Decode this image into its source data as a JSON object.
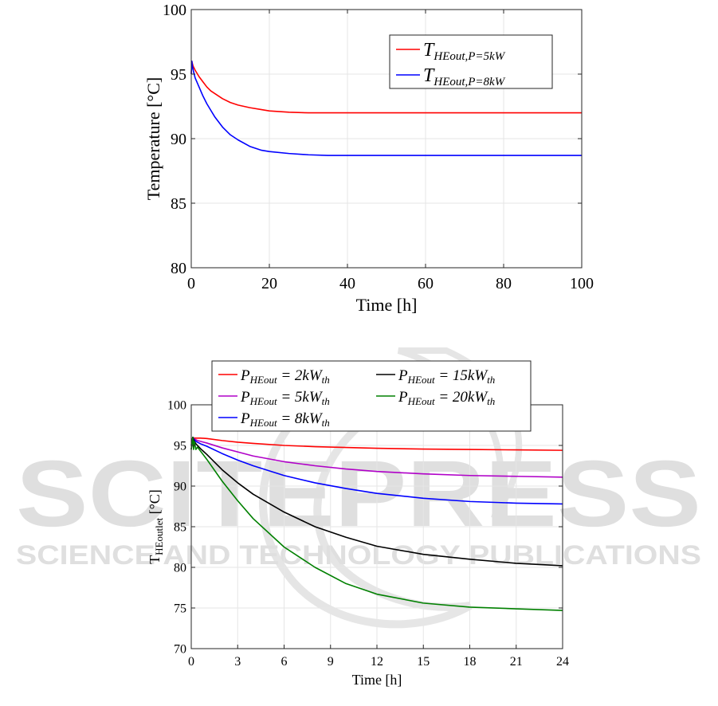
{
  "watermark": {
    "main": "SCITEPRESS",
    "sub": "SCIENCE AND TECHNOLOGY PUBLICATIONS",
    "color": "#d9d9d9"
  },
  "chart_data": [
    {
      "type": "line",
      "title": "",
      "xlabel": "Time [h]",
      "ylabel": "Temperature [°C]",
      "xlim": [
        0,
        100
      ],
      "ylim": [
        80,
        100
      ],
      "xticks": [
        0,
        20,
        40,
        60,
        80,
        100
      ],
      "yticks": [
        80,
        85,
        90,
        95,
        100
      ],
      "grid": true,
      "legend_position": "top-right",
      "series": [
        {
          "name": "T_{HEout,P=5kW}",
          "legend_main": "T",
          "legend_sub": "HEout,P=5kW",
          "color": "#ff0000",
          "x": [
            0,
            0.15,
            0.3,
            0.5,
            1,
            2,
            3,
            4,
            5,
            6,
            8,
            10,
            12,
            15,
            18,
            20,
            25,
            30,
            35,
            40,
            50,
            60,
            70,
            80,
            90,
            100
          ],
          "y": [
            95.0,
            96.0,
            95.8,
            95.6,
            95.3,
            94.8,
            94.4,
            94.0,
            93.7,
            93.5,
            93.1,
            92.8,
            92.6,
            92.4,
            92.25,
            92.15,
            92.05,
            92.0,
            92.0,
            92.0,
            92.0,
            92.0,
            92.0,
            92.0,
            92.0,
            92.0
          ]
        },
        {
          "name": "T_{HEout,P=8kW}",
          "legend_main": "T",
          "legend_sub": "HEout,P=8kW",
          "color": "#0000ff",
          "x": [
            0,
            0.15,
            0.3,
            0.5,
            1,
            2,
            3,
            4,
            5,
            6,
            8,
            10,
            12,
            15,
            18,
            20,
            25,
            30,
            35,
            40,
            50,
            60,
            70,
            80,
            90,
            100
          ],
          "y": [
            95.0,
            96.0,
            95.6,
            95.3,
            94.7,
            94.0,
            93.3,
            92.7,
            92.2,
            91.7,
            90.9,
            90.3,
            89.9,
            89.4,
            89.1,
            89.0,
            88.85,
            88.75,
            88.7,
            88.7,
            88.7,
            88.7,
            88.7,
            88.7,
            88.7,
            88.7
          ]
        }
      ]
    },
    {
      "type": "line",
      "title": "",
      "xlabel": "Time [h]",
      "ylabel_main": "T",
      "ylabel_sub": "HEoutlet",
      "ylabel_unit": " [°C]",
      "xlim": [
        0,
        24
      ],
      "ylim": [
        70,
        100
      ],
      "xticks": [
        0,
        3,
        6,
        9,
        12,
        15,
        18,
        21,
        24
      ],
      "yticks": [
        70,
        75,
        80,
        85,
        90,
        95,
        100
      ],
      "grid": true,
      "legend_position": "top",
      "series": [
        {
          "name": "P_{HEout} = 2kW_{th}",
          "legend_p": "P",
          "legend_sub": "HEout",
          "legend_mid": " = 2kW",
          "legend_sub2": "th",
          "color": "#ff0000",
          "x": [
            0,
            0.1,
            0.2,
            0.3,
            0.4,
            0.6,
            1,
            2,
            3,
            4,
            6,
            8,
            10,
            12,
            15,
            18,
            21,
            24
          ],
          "y": [
            95.5,
            96.0,
            95.9,
            95.9,
            95.9,
            95.9,
            95.85,
            95.6,
            95.4,
            95.25,
            95.0,
            94.85,
            94.75,
            94.65,
            94.55,
            94.5,
            94.45,
            94.4
          ]
        },
        {
          "name": "P_{HEout} = 5kW_{th}",
          "legend_p": "P",
          "legend_sub": "HEout",
          "legend_mid": " = 5kW",
          "legend_sub2": "th",
          "color": "#b000c8",
          "x": [
            0,
            0.1,
            0.2,
            0.3,
            0.4,
            0.6,
            1,
            2,
            3,
            4,
            6,
            8,
            10,
            12,
            15,
            18,
            21,
            24
          ],
          "y": [
            95.0,
            96.0,
            95.8,
            95.7,
            95.6,
            95.5,
            95.3,
            94.7,
            94.2,
            93.7,
            93.0,
            92.5,
            92.1,
            91.8,
            91.5,
            91.3,
            91.2,
            91.1
          ]
        },
        {
          "name": "P_{HEout} = 8kW_{th}",
          "legend_p": "P",
          "legend_sub": "HEout",
          "legend_mid": " = 8kW",
          "legend_sub2": "th",
          "color": "#0000ff",
          "x": [
            0,
            0.1,
            0.2,
            0.3,
            0.4,
            0.6,
            1,
            2,
            3,
            4,
            6,
            8,
            10,
            12,
            15,
            18,
            21,
            24
          ],
          "y": [
            95.0,
            96.0,
            95.7,
            95.5,
            95.4,
            95.2,
            94.9,
            94.0,
            93.2,
            92.5,
            91.3,
            90.4,
            89.7,
            89.1,
            88.5,
            88.1,
            87.9,
            87.8
          ]
        },
        {
          "name": "P_{HEout} = 15kW_{th}",
          "legend_p": "P",
          "legend_sub": "HEout",
          "legend_mid": " = 15kW",
          "legend_sub2": "th",
          "color": "#000000",
          "x": [
            0,
            0.1,
            0.2,
            0.3,
            0.4,
            0.6,
            1,
            2,
            3,
            4,
            6,
            8,
            10,
            12,
            15,
            18,
            21,
            24
          ],
          "y": [
            94.5,
            96.0,
            95.5,
            95.2,
            95.0,
            94.6,
            93.9,
            92.0,
            90.4,
            89.0,
            86.8,
            85.0,
            83.7,
            82.6,
            81.6,
            81.0,
            80.5,
            80.2
          ]
        },
        {
          "name": "P_{HEout} = 20kW_{th}",
          "legend_p": "P",
          "legend_sub": "HEout",
          "legend_mid": " = 20kW",
          "legend_sub2": "th",
          "color": "#008000",
          "x": [
            0,
            0.1,
            0.15,
            0.2,
            0.3,
            0.4,
            0.6,
            1,
            2,
            3,
            4,
            6,
            8,
            10,
            12,
            15,
            18,
            21,
            24
          ],
          "y": [
            94.5,
            96.0,
            94.5,
            95.5,
            94.5,
            94.8,
            94.3,
            93.3,
            90.6,
            88.2,
            86.0,
            82.5,
            80.0,
            78.0,
            76.7,
            75.6,
            75.1,
            74.9,
            74.7
          ]
        }
      ]
    }
  ]
}
